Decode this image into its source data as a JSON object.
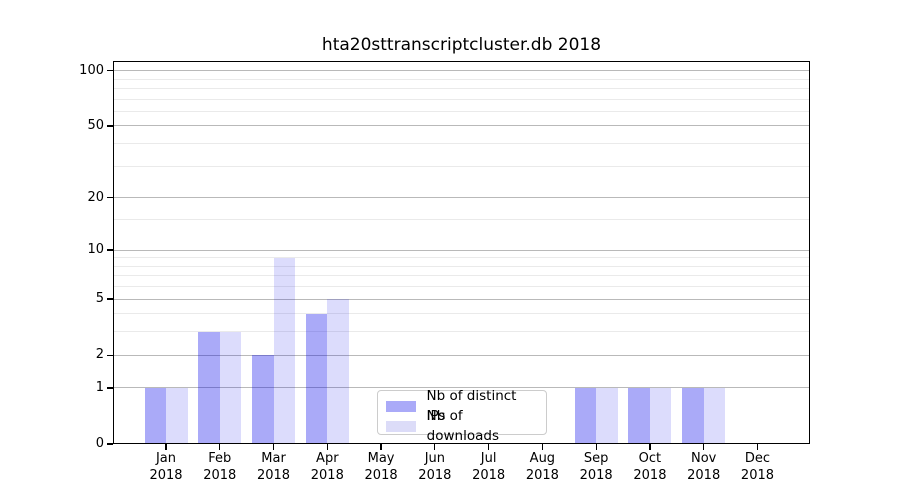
{
  "title": "hta20sttranscriptcluster.db 2018",
  "chart_data": {
    "type": "bar",
    "title": "hta20sttranscriptcluster.db 2018",
    "categories": [
      "Jan 2018",
      "Feb 2018",
      "Mar 2018",
      "Apr 2018",
      "May 2018",
      "Jun 2018",
      "Jul 2018",
      "Aug 2018",
      "Sep 2018",
      "Oct 2018",
      "Nov 2018",
      "Dec 2018"
    ],
    "month_labels": [
      "Jan",
      "Feb",
      "Mar",
      "Apr",
      "May",
      "Jun",
      "Jul",
      "Aug",
      "Sep",
      "Oct",
      "Nov",
      "Dec"
    ],
    "year": "2018",
    "series": [
      {
        "name": "Nb of distinct IPs",
        "values": [
          1,
          3,
          2,
          4,
          0,
          0,
          0,
          0,
          1,
          1,
          1,
          0
        ],
        "fill": "rgba(0,0,234,0.333)",
        "solid": "#aaaaf8"
      },
      {
        "name": "Nb of downloads",
        "values": [
          1,
          3,
          9,
          5,
          0,
          0,
          0,
          0,
          1,
          1,
          1,
          0
        ],
        "fill": "rgba(0,0,234,0.137)",
        "solid": "#dcdcf8"
      }
    ],
    "xlabel": "",
    "ylabel": "",
    "yscale": "log1p",
    "ylim": [
      0,
      112
    ],
    "y_major_ticks": [
      0,
      1,
      2,
      5,
      10,
      20,
      50,
      100
    ],
    "y_minor_ticks": [
      3,
      4,
      6,
      7,
      8,
      9,
      15,
      30,
      40,
      60,
      70,
      80,
      90
    ],
    "grid": "on",
    "legend_position": "inside lower center"
  },
  "colors": {
    "major_grid": "#b9b9b9",
    "minor_grid": "#eaeaea",
    "frame": "#000000",
    "legend_border": "#cccccc",
    "text": "#000000"
  }
}
